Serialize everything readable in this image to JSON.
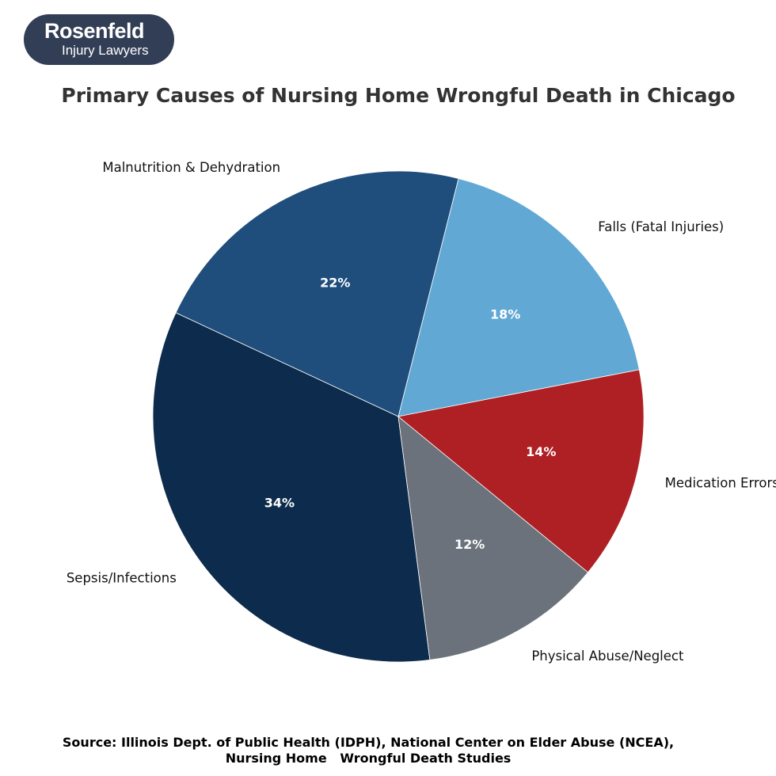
{
  "logo": {
    "name": "Rosenfeld",
    "subtitle": "Injury Lawyers"
  },
  "chart_data": {
    "type": "pie",
    "title": "Primary Causes of Nursing Home Wrongful Death in Chicago",
    "slices": [
      {
        "label": "Falls (Fatal Injuries)",
        "value": 18,
        "pct_label": "18%",
        "color": "#61a8d4"
      },
      {
        "label": "Malnutrition & Dehydration",
        "value": 22,
        "pct_label": "22%",
        "color": "#1f4e7c"
      },
      {
        "label": "Sepsis/Infections",
        "value": 34,
        "pct_label": "34%",
        "color": "#0d2b4c"
      },
      {
        "label": "Physical Abuse/Neglect",
        "value": 12,
        "pct_label": "12%",
        "color": "#6b727c"
      },
      {
        "label": "Medication Errors/Overdose",
        "value": 14,
        "pct_label": "14%",
        "color": "#af2024"
      }
    ],
    "legend": "none"
  },
  "source": {
    "line1": "Source: Illinois Dept. of Public Health (IDPH), National Center on Elder Abuse (NCEA),",
    "line2": "Nursing Home   Wrongful Death Studies"
  }
}
